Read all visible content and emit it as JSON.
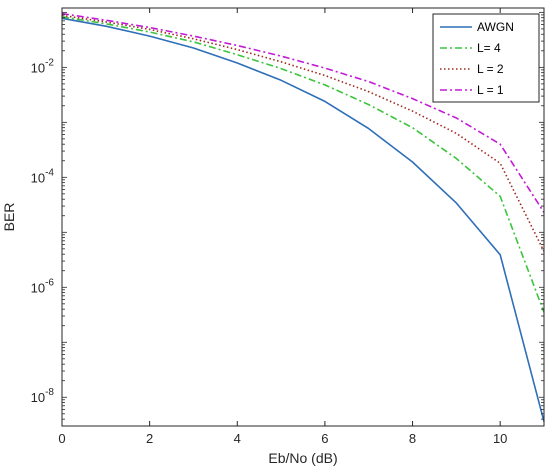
{
  "chart_data": {
    "type": "line",
    "title": "",
    "xlabel": "Eb/No (dB)",
    "ylabel": "BER",
    "xlim": [
      0,
      11
    ],
    "ylim": [
      3e-09,
      0.12
    ],
    "yscale": "log",
    "grid": false,
    "legend": "top-right",
    "x": [
      0,
      1,
      2,
      3,
      4,
      5,
      6,
      7,
      8,
      9,
      10,
      11
    ],
    "x_ticks": [
      "0",
      "2",
      "4",
      "6",
      "8",
      "10"
    ],
    "x_tick_values": [
      0,
      2,
      4,
      6,
      8,
      10
    ],
    "y_ticks": [
      {
        "base": "10",
        "exp": "-2",
        "value": 0.01
      },
      {
        "base": "10",
        "exp": "-4",
        "value": 0.0001
      },
      {
        "base": "10",
        "exp": "-6",
        "value": 1e-06
      },
      {
        "base": "10",
        "exp": "-8",
        "value": 1e-08
      }
    ],
    "series": [
      {
        "name": "AWGN",
        "color": "#2e6fb8",
        "dash": "solid",
        "values": [
          0.078,
          0.056,
          0.037,
          0.0225,
          0.012,
          0.0058,
          0.0024,
          0.00077,
          0.00019,
          3.39e-05,
          3.9e-06,
          3.6e-09
        ]
      },
      {
        "name": "L= 4",
        "color": "#3cc43c",
        "dash": "dashdot",
        "values": [
          0.083,
          0.062,
          0.044,
          0.029,
          0.017,
          0.0095,
          0.0048,
          0.0021,
          0.0008,
          0.00022,
          4.5e-05,
          3.5e-07
        ]
      },
      {
        "name": "L = 2",
        "color": "#a0281e",
        "dash": "dotted",
        "values": [
          0.088,
          0.067,
          0.049,
          0.033,
          0.021,
          0.0126,
          0.0071,
          0.0036,
          0.0016,
          0.00063,
          0.00018,
          4.5e-06
        ]
      },
      {
        "name": "L = 1",
        "color": "#c21ad6",
        "dash": "dashdot",
        "values": [
          0.095,
          0.072,
          0.053,
          0.037,
          0.025,
          0.016,
          0.0097,
          0.0055,
          0.0027,
          0.0012,
          0.0004,
          2.3e-05
        ]
      }
    ]
  }
}
